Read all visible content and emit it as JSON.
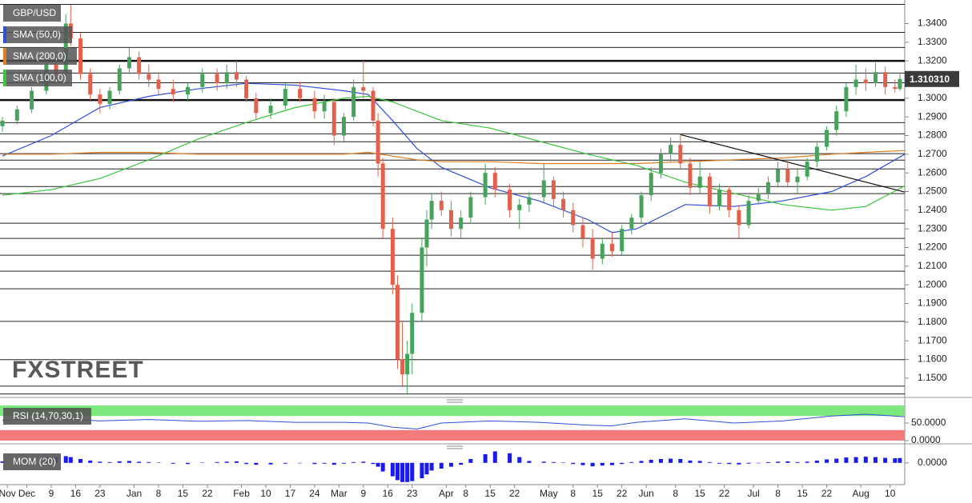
{
  "chart_data": {
    "type": "candlestick",
    "symbol": "GBP/USD",
    "watermark": "FXSTREET",
    "xlim": [
      -0.5,
      185
    ],
    "xticks": [
      {
        "value": 1,
        "label": "Nov"
      },
      {
        "value": 5,
        "label": "Dec"
      },
      {
        "value": 10,
        "label": "9"
      },
      {
        "value": 15,
        "label": "16"
      },
      {
        "value": 20,
        "label": "23"
      },
      {
        "value": 27,
        "label": "Jan"
      },
      {
        "value": 32,
        "label": "8"
      },
      {
        "value": 37,
        "label": "15"
      },
      {
        "value": 42,
        "label": "22"
      },
      {
        "value": 49,
        "label": "Feb"
      },
      {
        "value": 54,
        "label": "10"
      },
      {
        "value": 59,
        "label": "17"
      },
      {
        "value": 64,
        "label": "24"
      },
      {
        "value": 69,
        "label": "Mar"
      },
      {
        "value": 74,
        "label": "9"
      },
      {
        "value": 79,
        "label": "16"
      },
      {
        "value": 84,
        "label": "23"
      },
      {
        "value": 91,
        "label": "Apr"
      },
      {
        "value": 95,
        "label": "8"
      },
      {
        "value": 100,
        "label": "15"
      },
      {
        "value": 105,
        "label": "22"
      },
      {
        "value": 112,
        "label": "May"
      },
      {
        "value": 117,
        "label": "8"
      },
      {
        "value": 122,
        "label": "15"
      },
      {
        "value": 127,
        "label": "22"
      },
      {
        "value": 132,
        "label": "Jun"
      },
      {
        "value": 138,
        "label": "8"
      },
      {
        "value": 143,
        "label": "15"
      },
      {
        "value": 148,
        "label": "22"
      },
      {
        "value": 154,
        "label": "Jul"
      },
      {
        "value": 159,
        "label": "8"
      },
      {
        "value": 164,
        "label": "15"
      },
      {
        "value": 169,
        "label": "22"
      },
      {
        "value": 176,
        "label": "Aug"
      },
      {
        "value": 182,
        "label": "10"
      }
    ],
    "ylim": [
      1.1405,
      1.3505
    ],
    "yticks": [
      {
        "value": 1.15,
        "label": "1.1500"
      },
      {
        "value": 1.16,
        "label": "1.1600"
      },
      {
        "value": 1.17,
        "label": "1.1700"
      },
      {
        "value": 1.18,
        "label": "1.1800"
      },
      {
        "value": 1.19,
        "label": "1.1900"
      },
      {
        "value": 1.2,
        "label": "1.2000"
      },
      {
        "value": 1.21,
        "label": "1.2100"
      },
      {
        "value": 1.22,
        "label": "1.2200"
      },
      {
        "value": 1.23,
        "label": "1.2300"
      },
      {
        "value": 1.24,
        "label": "1.2400"
      },
      {
        "value": 1.25,
        "label": "1.2500"
      },
      {
        "value": 1.26,
        "label": "1.2600"
      },
      {
        "value": 1.27,
        "label": "1.2700"
      },
      {
        "value": 1.28,
        "label": "1.2800"
      },
      {
        "value": 1.29,
        "label": "1.2900"
      },
      {
        "value": 1.3,
        "label": "1.3000"
      },
      {
        "value": 1.32,
        "label": "1.3200"
      },
      {
        "value": 1.33,
        "label": "1.3300"
      },
      {
        "value": 1.34,
        "label": "1.3400"
      }
    ],
    "up_color": "#47a35c",
    "down_color": "#e5604c",
    "candles": {
      "x": [
        0,
        3,
        6,
        9,
        11,
        13,
        14,
        16,
        18,
        20,
        22,
        24,
        26,
        28,
        30,
        32,
        35,
        38,
        41,
        44,
        46,
        48,
        50,
        52,
        55,
        58,
        61,
        64,
        66,
        68,
        70,
        72,
        74,
        76,
        77,
        78,
        80,
        81,
        82,
        83,
        84,
        86,
        87,
        88,
        90,
        92,
        94,
        96,
        99,
        101,
        104,
        106,
        108,
        111,
        113,
        115,
        117,
        119,
        121,
        123,
        125,
        127,
        129,
        131,
        133,
        135,
        137,
        139,
        141,
        143,
        145,
        147,
        149,
        151,
        153,
        155,
        157,
        159,
        161,
        163,
        165,
        167,
        169,
        171,
        173,
        175,
        177,
        179,
        181,
        183,
        184
      ],
      "open": [
        1.285,
        1.288,
        1.294,
        1.304,
        1.318,
        1.314,
        1.34,
        1.332,
        1.313,
        1.302,
        1.297,
        1.304,
        1.316,
        1.322,
        1.313,
        1.31,
        1.305,
        1.302,
        1.306,
        1.313,
        1.308,
        1.314,
        1.31,
        1.3,
        1.292,
        1.296,
        1.305,
        1.3,
        1.293,
        1.298,
        1.28,
        1.29,
        1.306,
        1.304,
        1.288,
        1.265,
        1.23,
        1.2,
        1.16,
        1.152,
        1.163,
        1.185,
        1.22,
        1.235,
        1.245,
        1.24,
        1.23,
        1.236,
        1.247,
        1.26,
        1.251,
        1.24,
        1.243,
        1.247,
        1.256,
        1.246,
        1.24,
        1.232,
        1.225,
        1.214,
        1.222,
        1.218,
        1.23,
        1.236,
        1.248,
        1.26,
        1.27,
        1.275,
        1.265,
        1.252,
        1.258,
        1.242,
        1.251,
        1.24,
        1.232,
        1.245,
        1.249,
        1.255,
        1.262,
        1.255,
        1.258,
        1.266,
        1.274,
        1.283,
        1.293,
        1.306,
        1.31,
        1.308,
        1.314,
        1.306,
        1.305
      ],
      "high": [
        1.29,
        1.296,
        1.306,
        1.32,
        1.325,
        1.345,
        1.35,
        1.335,
        1.316,
        1.305,
        1.306,
        1.318,
        1.327,
        1.325,
        1.318,
        1.314,
        1.31,
        1.308,
        1.316,
        1.316,
        1.318,
        1.32,
        1.312,
        1.303,
        1.3,
        1.308,
        1.309,
        1.304,
        1.302,
        1.3,
        1.292,
        1.31,
        1.32,
        1.306,
        1.292,
        1.268,
        1.236,
        1.205,
        1.18,
        1.17,
        1.19,
        1.225,
        1.24,
        1.249,
        1.25,
        1.245,
        1.24,
        1.25,
        1.265,
        1.263,
        1.254,
        1.246,
        1.25,
        1.265,
        1.258,
        1.25,
        1.244,
        1.236,
        1.23,
        1.225,
        1.228,
        1.232,
        1.238,
        1.25,
        1.263,
        1.273,
        1.279,
        1.281,
        1.268,
        1.266,
        1.26,
        1.254,
        1.253,
        1.243,
        1.248,
        1.252,
        1.258,
        1.266,
        1.267,
        1.262,
        1.268,
        1.277,
        1.285,
        1.296,
        1.308,
        1.318,
        1.316,
        1.319,
        1.317,
        1.31,
        1.313
      ],
      "low": [
        1.282,
        1.286,
        1.292,
        1.302,
        1.31,
        1.312,
        1.328,
        1.31,
        1.299,
        1.292,
        1.294,
        1.302,
        1.313,
        1.31,
        1.306,
        1.302,
        1.298,
        1.299,
        1.303,
        1.304,
        1.305,
        1.306,
        1.298,
        1.289,
        1.289,
        1.294,
        1.298,
        1.289,
        1.289,
        1.275,
        1.277,
        1.288,
        1.3,
        1.285,
        1.258,
        1.225,
        1.195,
        1.155,
        1.146,
        1.141,
        1.152,
        1.18,
        1.21,
        1.23,
        1.237,
        1.226,
        1.225,
        1.233,
        1.243,
        1.247,
        1.236,
        1.23,
        1.239,
        1.244,
        1.242,
        1.236,
        1.228,
        1.22,
        1.208,
        1.211,
        1.215,
        1.216,
        1.227,
        1.233,
        1.245,
        1.257,
        1.266,
        1.262,
        1.248,
        1.249,
        1.238,
        1.24,
        1.236,
        1.225,
        1.23,
        1.243,
        1.246,
        1.252,
        1.252,
        1.249,
        1.256,
        1.263,
        1.272,
        1.28,
        1.29,
        1.302,
        1.304,
        1.306,
        1.302,
        1.303,
        1.304
      ],
      "close": [
        1.288,
        1.294,
        1.304,
        1.318,
        1.314,
        1.34,
        1.332,
        1.313,
        1.302,
        1.297,
        1.304,
        1.316,
        1.322,
        1.313,
        1.31,
        1.305,
        1.302,
        1.306,
        1.313,
        1.308,
        1.314,
        1.31,
        1.3,
        1.292,
        1.296,
        1.305,
        1.3,
        1.293,
        1.298,
        1.28,
        1.29,
        1.306,
        1.304,
        1.288,
        1.265,
        1.23,
        1.2,
        1.16,
        1.152,
        1.163,
        1.185,
        1.22,
        1.235,
        1.245,
        1.24,
        1.23,
        1.236,
        1.247,
        1.26,
        1.251,
        1.24,
        1.243,
        1.247,
        1.256,
        1.246,
        1.24,
        1.232,
        1.225,
        1.214,
        1.222,
        1.218,
        1.23,
        1.236,
        1.248,
        1.26,
        1.27,
        1.275,
        1.265,
        1.252,
        1.258,
        1.242,
        1.251,
        1.24,
        1.232,
        1.245,
        1.249,
        1.255,
        1.262,
        1.255,
        1.258,
        1.266,
        1.274,
        1.283,
        1.293,
        1.306,
        1.31,
        1.308,
        1.314,
        1.306,
        1.305,
        1.31031
      ]
    },
    "last_price": {
      "value": 1.31031,
      "label": "1.310310"
    },
    "line_x": [
      0,
      10,
      20,
      30,
      40,
      50,
      60,
      70,
      75,
      80,
      85,
      90,
      100,
      110,
      120,
      125,
      130,
      140,
      150,
      160,
      170,
      177,
      185
    ],
    "series": [
      {
        "name": "SMA (50,0)",
        "color": "#2f4fd8",
        "values": [
          1.269,
          1.28,
          1.295,
          1.301,
          1.305,
          1.308,
          1.307,
          1.304,
          1.302,
          1.288,
          1.273,
          1.263,
          1.252,
          1.245,
          1.235,
          1.228,
          1.23,
          1.243,
          1.242,
          1.245,
          1.25,
          1.258,
          1.27
        ]
      },
      {
        "name": "SMA (200,0)",
        "color": "#e07b1f",
        "values": [
          1.27,
          1.27,
          1.271,
          1.271,
          1.27,
          1.27,
          1.27,
          1.27,
          1.271,
          1.269,
          1.267,
          1.266,
          1.266,
          1.265,
          1.265,
          1.265,
          1.265,
          1.266,
          1.267,
          1.268,
          1.27,
          1.271,
          1.272
        ]
      },
      {
        "name": "SMA (100,0)",
        "color": "#3cc43c",
        "values": [
          1.248,
          1.251,
          1.257,
          1.267,
          1.278,
          1.287,
          1.295,
          1.3,
          1.301,
          1.298,
          1.293,
          1.288,
          1.284,
          1.277,
          1.27,
          1.267,
          1.264,
          1.255,
          1.249,
          1.243,
          1.24,
          1.242,
          1.253
        ]
      }
    ],
    "levels": [
      1.3503,
      1.3353,
      1.3272,
      1.3135,
      1.3083,
      1.2869,
      1.2809,
      1.2767,
      1.2703,
      1.2668,
      1.2621,
      1.2527,
      1.2489,
      1.233,
      1.2249,
      1.2159,
      1.2073,
      1.1979,
      1.1804,
      1.1599,
      1.1457,
      1.1415
    ],
    "major_levels": [
      1.32,
      1.299
    ],
    "trendline": {
      "x": [
        139,
        185
      ],
      "values": [
        1.2805,
        1.2497
      ]
    },
    "rsi": {
      "label": "RSI (14,70,30,1)",
      "color": "#2f4fd8",
      "ylim": [
        0,
        100
      ],
      "yticks": [
        {
          "value": 50,
          "label": "50.0000"
        },
        {
          "value": 0,
          "label": "0.0000"
        }
      ],
      "bands": [
        30,
        70
      ],
      "band_colors": [
        "#f47b7b",
        "#7de87d"
      ],
      "values": [
        58,
        64,
        56,
        60,
        55,
        57,
        52,
        52,
        50,
        38,
        33,
        50,
        56,
        52,
        44,
        42,
        52,
        62,
        50,
        56,
        70,
        75,
        68
      ]
    },
    "mom": {
      "label": "MOM (20)",
      "color": "#1a1aee",
      "ylim": [
        -0.105,
        0.07
      ],
      "yticks": [
        {
          "value": 0,
          "label": "0.0000"
        }
      ],
      "values": [
        0.008,
        0.012,
        0.018,
        0.028,
        0.03,
        0.035,
        0.03,
        0.02,
        0.012,
        0.006,
        0.004,
        0.008,
        0.01,
        0.006,
        0.004,
        0.002,
        -0.004,
        -0.006,
        0.002,
        0.004,
        0.006,
        0.008,
        -0.006,
        -0.01,
        -0.008,
        -0.004,
        -0.002,
        -0.006,
        -0.004,
        -0.01,
        -0.004,
        0.004,
        0.006,
        -0.006,
        -0.02,
        -0.045,
        -0.07,
        -0.09,
        -0.1,
        -0.1,
        -0.095,
        -0.08,
        -0.06,
        -0.04,
        -0.03,
        -0.02,
        -0.01,
        0.02,
        0.045,
        0.06,
        0.05,
        0.03,
        0.01,
        0.006,
        0.004,
        0.002,
        -0.006,
        -0.012,
        -0.018,
        -0.014,
        -0.012,
        -0.006,
        0.004,
        0.01,
        0.016,
        0.02,
        0.022,
        0.02,
        0.012,
        0.01,
        0.004,
        -0.004,
        -0.006,
        -0.008,
        -0.004,
        -0.002,
        0.004,
        0.006,
        0.008,
        0.004,
        0.006,
        0.012,
        0.018,
        0.022,
        0.028,
        0.03,
        0.032,
        0.03,
        0.026,
        0.024,
        0.025
      ]
    }
  }
}
